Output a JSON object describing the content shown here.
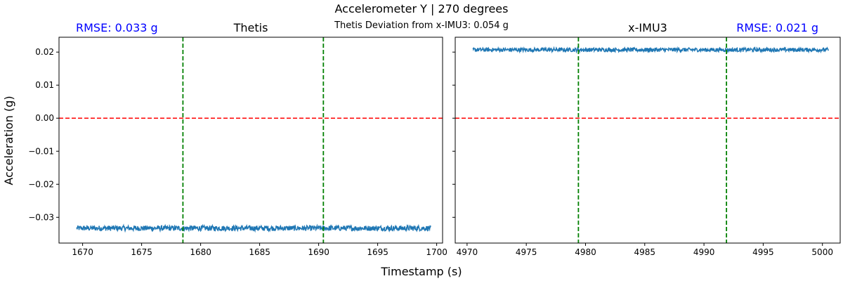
{
  "figure": {
    "title": "Accelerometer Y | 270 degrees",
    "subtitle": "Thetis Deviation from x-IMU3: 0.054 g",
    "xlabel": "Timestamp (s)",
    "ylabel": "Acceleration (g)"
  },
  "colors": {
    "series": "#1f77b4",
    "zero_line": "#ff0000",
    "window_line": "#008000",
    "rmse_text": "#0000ff",
    "text": "#000000"
  },
  "chart_data": [
    {
      "type": "line",
      "title": "Thetis",
      "annotation": "RMSE: 0.033 g",
      "xlim": [
        1668,
        1700.5
      ],
      "ylim": [
        -0.0378,
        0.0245
      ],
      "xticks": [
        1670,
        1675,
        1680,
        1685,
        1690,
        1695,
        1700
      ],
      "yticks": [
        -0.03,
        -0.02,
        -0.01,
        0.0,
        0.01,
        0.02
      ],
      "ytick_labels": [
        "−0.03",
        "−0.02",
        "−0.01",
        "0.00",
        "0.01",
        "0.02"
      ],
      "xtick_labels": [
        "1670",
        "1675",
        "1680",
        "1685",
        "1690",
        "1695",
        "1700"
      ],
      "series": [
        {
          "x_start": 1669.5,
          "x_end": 1699.5,
          "mean": -0.0333,
          "noise": 0.0008
        }
      ],
      "hlines": [
        0.0
      ],
      "vlines": [
        1678.5,
        1690.4
      ]
    },
    {
      "type": "line",
      "title": "x-IMU3",
      "annotation": "RMSE: 0.021 g",
      "xlim": [
        4969,
        5001.5
      ],
      "ylim": [
        -0.0378,
        0.0245
      ],
      "xticks": [
        4970,
        4975,
        4980,
        4985,
        4990,
        4995,
        5000
      ],
      "yticks": [
        -0.03,
        -0.02,
        -0.01,
        0.0,
        0.01,
        0.02
      ],
      "xtick_labels": [
        "4970",
        "4975",
        "4980",
        "4985",
        "4990",
        "4995",
        "5000"
      ],
      "series": [
        {
          "x_start": 4970.5,
          "x_end": 5000.5,
          "mean": 0.0207,
          "noise": 0.0006
        }
      ],
      "hlines": [
        0.0
      ],
      "vlines": [
        4979.4,
        4991.9
      ]
    }
  ]
}
